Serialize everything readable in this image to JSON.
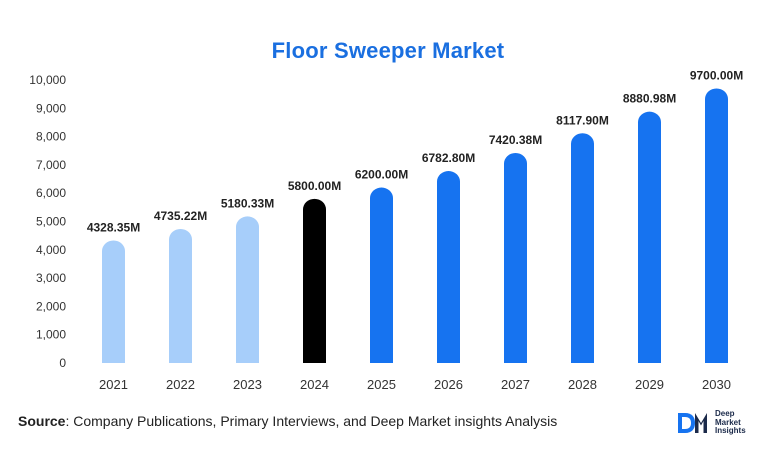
{
  "chart_data": {
    "type": "bar",
    "title": "Floor Sweeper Market",
    "categories": [
      "2021",
      "2022",
      "2023",
      "2024",
      "2025",
      "2026",
      "2027",
      "2028",
      "2029",
      "2030"
    ],
    "values": [
      4328.35,
      4735.22,
      5180.33,
      5800.0,
      6200.0,
      6782.8,
      7420.38,
      8117.9,
      8880.98,
      9700.0
    ],
    "data_labels": [
      "4328.35M",
      "4735.22M",
      "5180.33M",
      "5800.00M",
      "6200.00M",
      "6782.80M",
      "7420.38M",
      "8117.90M",
      "8880.98M",
      "9700.00M"
    ],
    "bar_colors": [
      "#a7cefa",
      "#a7cefa",
      "#a7cefa",
      "#000000",
      "#1673f0",
      "#1673f0",
      "#1673f0",
      "#1673f0",
      "#1673f0",
      "#1673f0"
    ],
    "ylim": [
      0,
      10000
    ],
    "yticks": [
      0,
      1000,
      2000,
      3000,
      4000,
      5000,
      6000,
      7000,
      8000,
      9000,
      10000
    ],
    "ytick_labels": [
      "0",
      "1,000",
      "2,000",
      "3,000",
      "4,000",
      "5,000",
      "6,000",
      "7,000",
      "8,000",
      "9,000",
      "10,000"
    ],
    "grid": false,
    "xlabel": "",
    "ylabel": ""
  },
  "colors": {
    "title": "#1a6fe0",
    "historical": "#a7cefa",
    "base_year": "#000000",
    "forecast": "#1673f0"
  },
  "source": {
    "label": "Source",
    "text": ": Company Publications, Primary Interviews, and Deep Market insights Analysis"
  },
  "logo": {
    "mark": "DM",
    "line1": "Deep",
    "line2": "Market",
    "line3": "Insights"
  }
}
